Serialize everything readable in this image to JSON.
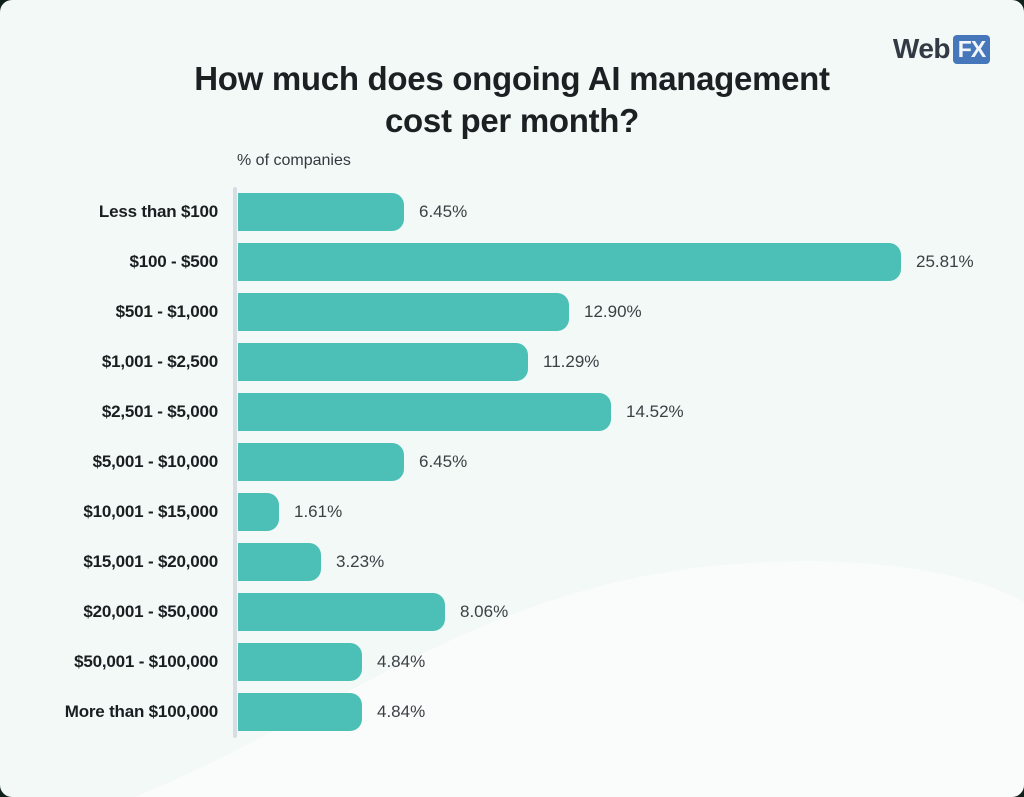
{
  "page": {
    "background_color": "#F2F9F6",
    "outside_color": "#10201a"
  },
  "header": {
    "title_line1": "How much does ongoing AI management",
    "title_line2": "cost per month?"
  },
  "logo": {
    "web": "Web",
    "fx": "FX",
    "fx_background": "#4677BB"
  },
  "chart_data": {
    "type": "bar",
    "orientation": "horizontal",
    "title": "How much does ongoing AI management cost per month?",
    "xlabel": "% of companies",
    "ylabel": "",
    "categories": [
      "Less than $100",
      "$100 - $500",
      "$501 - $1,000",
      "$1,001 - $2,500",
      "$2,501 - $5,000",
      "$5,001 - $10,000",
      "$10,001 - $15,000",
      "$15,001 - $20,000",
      "$20,001 - $50,000",
      "$50,001 - $100,000",
      "More than $100,000"
    ],
    "values": [
      6.45,
      25.81,
      12.9,
      11.29,
      14.52,
      6.45,
      1.61,
      3.23,
      8.06,
      4.84,
      4.84
    ],
    "value_labels": [
      "6.45%",
      "25.81%",
      "12.90%",
      "11.29%",
      "14.52%",
      "6.45%",
      "1.61%",
      "3.23%",
      "8.06%",
      "4.84%",
      "4.84%"
    ],
    "bar_color": "#4CC0B6",
    "axis_line_color": "#D8DDE3",
    "xlim": [
      0,
      25.81
    ],
    "grid": false,
    "legend": false
  }
}
